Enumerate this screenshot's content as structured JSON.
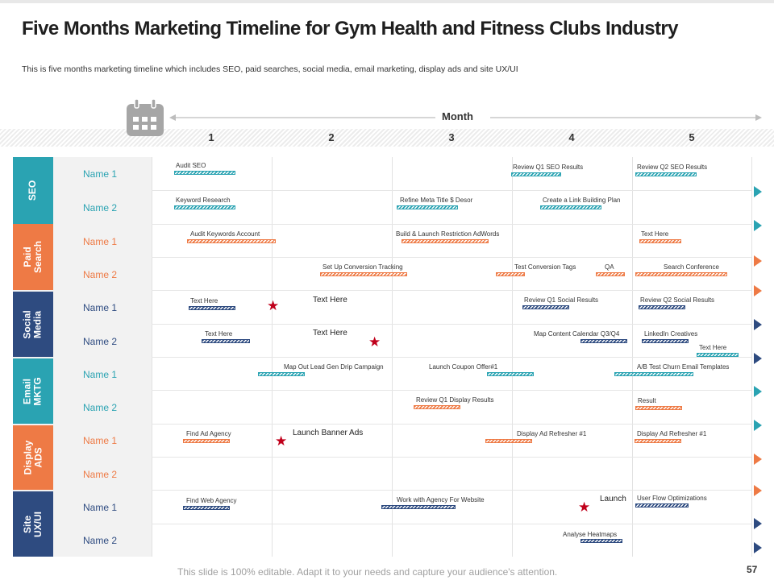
{
  "title": "Five Months Marketing Timeline for Gym Health and Fitness Clubs Industry",
  "subtitle": "This is five months marketing timeline which includes SEO, paid searches, social media, email marketing, display ads and site UX/UI",
  "month_label": "Month",
  "months": [
    "1",
    "2",
    "3",
    "4",
    "5"
  ],
  "footer": "This slide is 100% editable. Adapt it to your needs and capture your audience's attention.",
  "page_number": "57",
  "colors": {
    "teal": "#2aa3b2",
    "orange": "#ee7a45",
    "navy": "#2e4b80",
    "star": "#c0001b"
  },
  "categories": [
    {
      "label": "SEO",
      "color": "#2aa3b2"
    },
    {
      "label": "Paid\nSearch",
      "color": "#ee7a45"
    },
    {
      "label": "Social\nMedia",
      "color": "#2e4b80"
    },
    {
      "label": "Email\nMKTG",
      "color": "#2aa3b2"
    },
    {
      "label": "Display\nADS",
      "color": "#ee7a45"
    },
    {
      "label": "Site\nUX/UI",
      "color": "#2e4b80"
    }
  ],
  "rows": [
    {
      "name": "Name 1",
      "color": "teal"
    },
    {
      "name": "Name 2",
      "color": "teal"
    },
    {
      "name": "Name 1",
      "color": "orange"
    },
    {
      "name": "Name 2",
      "color": "orange"
    },
    {
      "name": "Name 1",
      "color": "navy"
    },
    {
      "name": "Name 2",
      "color": "navy"
    },
    {
      "name": "Name 1",
      "color": "teal"
    },
    {
      "name": "Name 2",
      "color": "teal"
    },
    {
      "name": "Name 1",
      "color": "orange"
    },
    {
      "name": "Name 2",
      "color": "orange"
    },
    {
      "name": "Name 1",
      "color": "navy"
    },
    {
      "name": "Name 2",
      "color": "navy"
    }
  ],
  "tasks": {
    "audit_seo": "Audit SEO",
    "review_q1_seo": "Review Q1 SEO Results",
    "review_q2_seo": "Review Q2 SEO Results",
    "keyword_research": "Keyword Research",
    "refine_meta": "Refine Meta Title $ Desor",
    "link_building": "Create a Link Building Plan",
    "audit_keywords": "Audit Keywords Account",
    "build_launch": "Build & Launch Restriction AdWords",
    "text_here_paid": "Text Here",
    "conversion_tracking": "Set Up Conversion Tracking",
    "test_conversion": "Test Conversion Tags",
    "qa": "QA",
    "search_conference": "Search Conference",
    "text_here_social1": "Text Here",
    "review_q1_social": "Review Q1 Social Results",
    "review_q2_social": "Review Q2 Social Results",
    "text_here_social2": "Text Here",
    "map_content": "Map Content Calendar Q3/Q4",
    "linkedin": "LinkedIn Creatives",
    "text_here_social3": "Text Here",
    "lead_gen": "Map Out Lead Gen Drip Campaign",
    "coupon": "Launch Coupon Offer#1",
    "ab_test": "A/B Test Churn Email Templates",
    "review_q1_display": "Review Q1 Display Results",
    "result": "Result",
    "find_ad_agency": "Find Ad Agency",
    "ad_refresher1": "Display Ad Refresher #1",
    "ad_refresher1b": "Display Ad Refresher #1",
    "find_web_agency": "Find Web Agency",
    "work_agency": "Work with Agency For Website",
    "user_flow": "User Flow Optimizations",
    "heatmaps": "Analyse Heatmaps"
  },
  "milestones": {
    "social1": "Text Here",
    "social2": "Text Here",
    "banner": "Launch Banner Ads",
    "launch": "Launch"
  }
}
